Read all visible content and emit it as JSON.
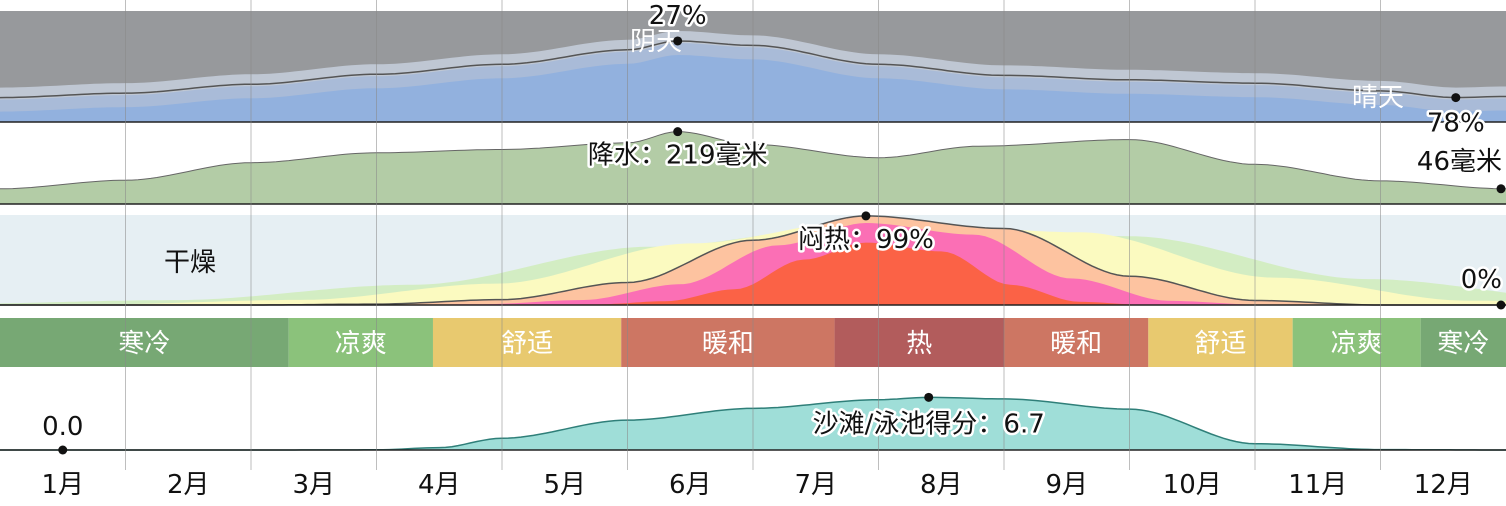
{
  "months": [
    "1月",
    "2月",
    "3月",
    "4月",
    "5月",
    "6月",
    "7月",
    "8月",
    "9月",
    "10月",
    "11月",
    "12月"
  ],
  "colors": {
    "overcast": "#97999c",
    "clear": "#92b1de",
    "precip": "#b3cca6",
    "dry": "#e6eff3",
    "muggy_bands": [
      "#d3edc3",
      "#fbfac0",
      "#fdc3a0",
      "#fb6fb5",
      "#fb6246"
    ],
    "temp_bands": {
      "寒冷": "#77a874",
      "凉爽": "#8bc27b",
      "舒适": "#e8c96f",
      "暖和": "#cd7663",
      "热": "#b25c5c"
    },
    "beach": "#9fded8"
  },
  "labels": {
    "cloud_top": "阴天",
    "cloud_bottom": "晴天",
    "cloud_min": "27%",
    "cloud_max": "78%",
    "precip_max": "降水：219毫米",
    "precip_min": "46毫米",
    "dry": "干燥",
    "muggy_max": "闷热：99%",
    "muggy_min": "0%",
    "beach_max": "沙滩/泳池得分：6.7",
    "beach_min": "0.0"
  },
  "chart_data": [
    {
      "type": "area",
      "name": "cloud_cover",
      "x": [
        0,
        1,
        2,
        3,
        4,
        5,
        5.4,
        6,
        7,
        8,
        9,
        10,
        11,
        11.6,
        12
      ],
      "values": [
        78,
        74,
        66,
        57,
        48,
        35,
        27,
        31,
        48,
        58,
        62,
        65,
        72,
        78,
        77
      ],
      "annotations": [
        {
          "x": 5.4,
          "text": "27%"
        },
        {
          "x": 11.6,
          "text": "78%"
        }
      ]
    },
    {
      "type": "area",
      "name": "precipitation",
      "x": [
        0,
        1,
        2,
        3,
        4,
        5,
        5.4,
        6,
        7,
        7.8,
        9,
        10,
        11,
        12
      ],
      "values": [
        46,
        72,
        125,
        155,
        165,
        185,
        219,
        180,
        140,
        175,
        195,
        120,
        70,
        46
      ],
      "annotations": [
        {
          "x": 5.4,
          "text": "降水：219毫米"
        },
        {
          "x": 12,
          "text": "46毫米"
        }
      ]
    },
    {
      "type": "area",
      "name": "muggy",
      "x": [
        0,
        1,
        2,
        3,
        4,
        5,
        6,
        6.9,
        8,
        9,
        10,
        11,
        12
      ],
      "values": [
        0,
        0,
        0,
        1,
        6,
        25,
        72,
        99,
        85,
        32,
        5,
        0,
        0
      ],
      "annotations": [
        {
          "x": 6.9,
          "text": "闷热：99%"
        },
        {
          "x": 12,
          "text": "0%"
        }
      ]
    },
    {
      "type": "table",
      "name": "temperature_bands",
      "segments": [
        {
          "label": "寒冷",
          "start": 0,
          "end": 2.3
        },
        {
          "label": "凉爽",
          "start": 2.3,
          "end": 3.45
        },
        {
          "label": "舒适",
          "start": 3.45,
          "end": 4.95
        },
        {
          "label": "暖和",
          "start": 4.95,
          "end": 6.65
        },
        {
          "label": "热",
          "start": 6.65,
          "end": 8.0
        },
        {
          "label": "暖和",
          "start": 8.0,
          "end": 9.15
        },
        {
          "label": "舒适",
          "start": 9.15,
          "end": 10.3
        },
        {
          "label": "凉爽",
          "start": 10.3,
          "end": 11.32
        },
        {
          "label": "寒冷",
          "start": 11.32,
          "end": 12
        }
      ]
    },
    {
      "type": "area",
      "name": "beach_score",
      "x": [
        0,
        0.5,
        2,
        3,
        3.5,
        4,
        5,
        6,
        7,
        7.4,
        8,
        9,
        10,
        11,
        12
      ],
      "values": [
        0,
        0,
        0,
        0.02,
        0.3,
        1.5,
        3.8,
        5.3,
        6.4,
        6.7,
        6.5,
        5.2,
        0.8,
        0.05,
        0
      ],
      "annotations": [
        {
          "x": 7.4,
          "text": "沙滩/泳池得分：6.7"
        },
        {
          "x": 0.5,
          "text": "0.0"
        }
      ]
    }
  ]
}
